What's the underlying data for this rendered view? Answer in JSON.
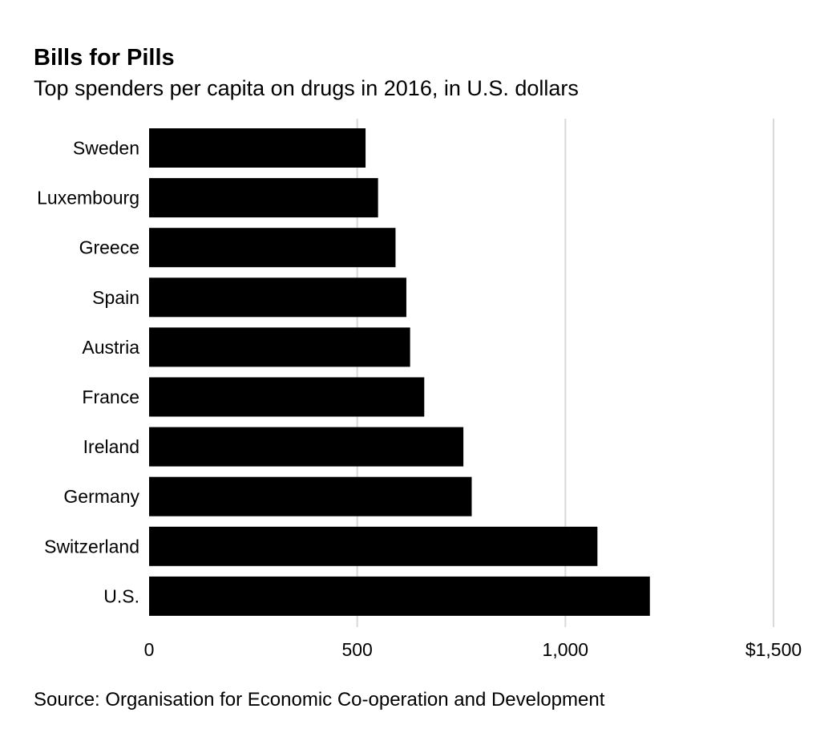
{
  "title": "Bills for Pills",
  "subtitle": "Top spenders per capita on drugs in 2016, in U.S. dollars",
  "source": "Source: Organisation for Economic Co-operation and Development",
  "colors": {
    "bar": "#000000",
    "grid": "#d9d9d9",
    "text": "#000000",
    "background": "#ffffff"
  },
  "chart_data": {
    "type": "bar",
    "orientation": "horizontal",
    "title": "Bills for Pills",
    "subtitle": "Top spenders per capita on drugs in 2016, in U.S. dollars",
    "categories": [
      "Sweden",
      "Luxembourg",
      "Greece",
      "Spain",
      "Austria",
      "France",
      "Ireland",
      "Germany",
      "Switzerland",
      "U.S."
    ],
    "values": [
      520,
      550,
      592,
      618,
      627,
      661,
      755,
      775,
      1077,
      1203
    ],
    "xlim": [
      0,
      1500
    ],
    "xticks": [
      0,
      500,
      1000,
      1500
    ],
    "xtick_labels": [
      "0",
      "500",
      "1,000",
      "$1,500"
    ],
    "xlabel": "",
    "ylabel": "",
    "grid": true,
    "legend": "none"
  }
}
